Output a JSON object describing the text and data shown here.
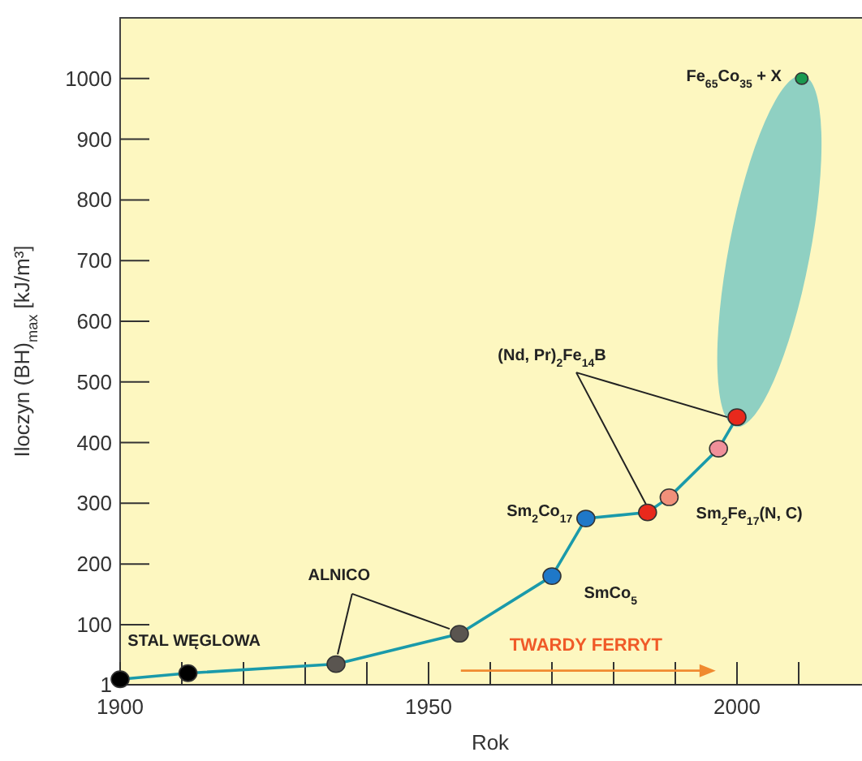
{
  "chart_data": {
    "type": "line",
    "xlabel": "Rok",
    "ylabel": "Iloczyn (BH)$_{max}$ [kJ/m³]",
    "xlim": [
      1900,
      2020
    ],
    "ylim": [
      1,
      1100
    ],
    "xticks": [
      1900,
      {
        "value": 1910,
        "label": null
      },
      {
        "value": 1920,
        "label": null
      },
      {
        "value": 1930,
        "label": null
      },
      {
        "value": 1940,
        "label": null
      },
      1950,
      {
        "value": 1960,
        "label": null
      },
      {
        "value": 1970,
        "label": null
      },
      {
        "value": 1980,
        "label": null
      },
      {
        "value": 1990,
        "label": null
      },
      2000,
      {
        "value": 2010,
        "label": null
      }
    ],
    "yticks": [
      1,
      100,
      200,
      300,
      400,
      500,
      600,
      700,
      800,
      900,
      1000
    ],
    "grid": false,
    "marker": "circle",
    "series": [
      {
        "color": "#1a9aaa",
        "x": [
          1900,
          1911,
          1935,
          1955,
          1970,
          1975.5,
          1985.5,
          1989,
          1997,
          2000
        ],
        "values": [
          10,
          20,
          35,
          85,
          180,
          275,
          285,
          310,
          390,
          442
        ],
        "colors": [
          "#000000",
          "#000000",
          "#5a5550",
          "#5a5550",
          "#1f78c8",
          "#1f78c8",
          "#e8291c",
          "#f0907a",
          "#f0909a",
          "#e8291c"
        ]
      },
      {
        "type": "scatter",
        "x": [
          2010.5
        ],
        "values": [
          1000
        ],
        "colors": [
          "#1a9a50"
        ]
      }
    ],
    "annotations": [
      "STAL WĘGLOWA",
      {
        "text": "ALNICO",
        "x": 1955,
        "y": 85
      },
      "SmCo$_{5}$",
      "Sm$_{2}$Co$_{17}$",
      {
        "text": "(Nd, Pr)$_{2}$Fe$_{14}$B",
        "x": 2000,
        "y": 442
      },
      "Sm$_{2}$Fe$_{17}$(N, C)",
      "Fe$_{65}$Co$_{35}$ + X",
      "TWARDY FERRYT"
    ]
  }
}
